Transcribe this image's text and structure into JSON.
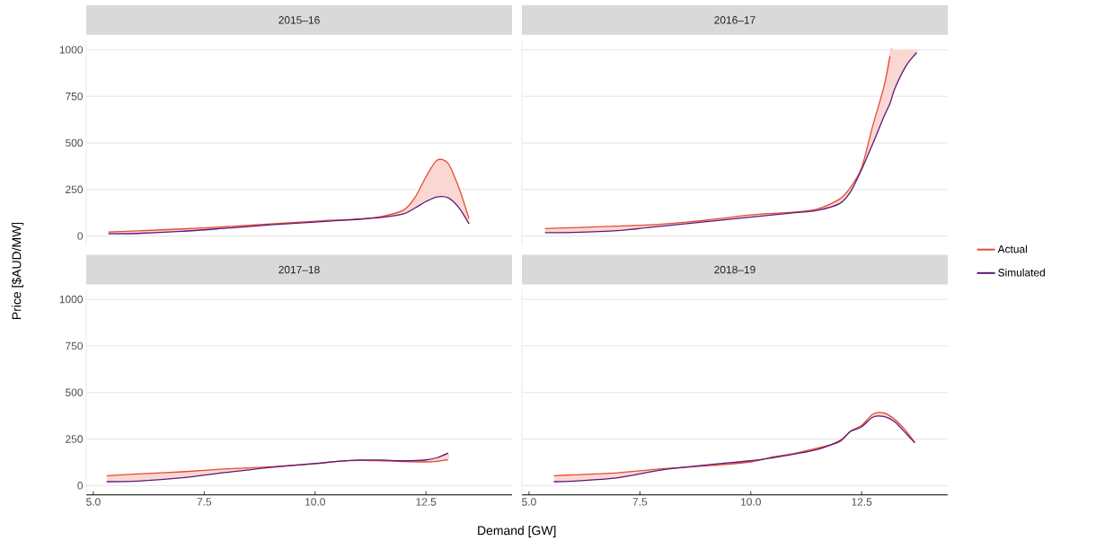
{
  "chart_data": [
    {
      "type": "line",
      "title": "2015–16",
      "ylabel": "Price [$AUD/MW]",
      "x": [
        5.34,
        6,
        7,
        8,
        9,
        10,
        11,
        11.5,
        12,
        12.25,
        12.5,
        12.75,
        13,
        13.25,
        13.47
      ],
      "xlim": [
        4.84,
        14.44
      ],
      "ylim": [
        -50,
        1050
      ],
      "yticks": [
        0,
        250,
        500,
        750,
        1000
      ],
      "grid": "y",
      "tick_labels": "y",
      "marker": "none",
      "line_style": "solid",
      "series": [
        {
          "color": "#e64b35",
          "values": [
            22,
            28,
            38,
            50,
            65,
            80,
            92,
            105,
            140,
            206,
            318,
            407,
            390,
            254,
            93
          ],
          "lower": [
            12,
            14,
            25,
            42,
            60,
            75,
            90,
            100,
            120,
            150,
            185,
            210,
            205,
            150,
            65
          ],
          "upper": [
            22,
            28,
            38,
            50,
            65,
            80,
            92,
            105,
            140,
            206,
            318,
            407,
            390,
            254,
            93
          ]
        },
        {
          "color": "#5b1a7b",
          "values": [
            12,
            14,
            25,
            42,
            60,
            75,
            90,
            100,
            120,
            150,
            185,
            210,
            205,
            150,
            65
          ]
        }
      ]
    },
    {
      "type": "line",
      "title": "2016–17",
      "x": [
        5.36,
        6,
        7,
        8,
        9,
        10,
        10.5,
        11,
        11.5,
        12,
        12.25,
        12.5,
        12.75,
        13,
        13.14,
        13.25,
        13.5,
        13.74
      ],
      "xlim": [
        4.84,
        14.44
      ],
      "ylim": [
        -50,
        1050
      ],
      "yticks": [
        0,
        250,
        500,
        750,
        1000
      ],
      "grid": "y",
      "tick_labels": false,
      "legend": "right",
      "marker": "none",
      "line_style": "solid",
      "series": [
        {
          "name": "Actual",
          "color": "#e64b35",
          "values": [
            40,
            45,
            53,
            64,
            85,
            113,
            122,
            129,
            145,
            198,
            262,
            367,
            592,
            800,
            965,
            null,
            null,
            null
          ],
          "lower": [
            18,
            19,
            29,
            53,
            77,
            101,
            113,
            125,
            138,
            174,
            238,
            358,
            495,
            640,
            712,
            793,
            913,
            985
          ],
          "upper": [
            40,
            45,
            53,
            64,
            85,
            113,
            122,
            129,
            145,
            198,
            262,
            367,
            592,
            800,
            1000,
            1000,
            1000,
            1000
          ]
        },
        {
          "name": "Simulated",
          "color": "#5b1a7b",
          "values": [
            18,
            19,
            29,
            53,
            77,
            101,
            113,
            125,
            138,
            174,
            238,
            358,
            495,
            640,
            712,
            793,
            913,
            985
          ]
        }
      ]
    },
    {
      "type": "line",
      "title": "2017–18",
      "xlabel": "Demand [GW]",
      "ylabel": null,
      "x": [
        5.3,
        6,
        7,
        8,
        9,
        10,
        10.5,
        11,
        11.5,
        12,
        12.5,
        12.75,
        13
      ],
      "xlim": [
        4.84,
        14.44
      ],
      "ylim": [
        -50,
        1050
      ],
      "xticks": [
        {
          "value": 5,
          "label": "5.0"
        },
        {
          "value": 7.5,
          "label": "7.5"
        },
        {
          "value": 10,
          "label": "10.0"
        },
        {
          "value": 12.5,
          "label": "12.5"
        }
      ],
      "yticks": [
        0,
        250,
        500,
        750,
        1000
      ],
      "grid": "y",
      "marker": "none",
      "line_style": "solid",
      "series": [
        {
          "color": "#e64b35",
          "values": [
            53,
            63,
            74,
            90,
            101,
            117,
            130,
            135,
            133,
            129,
            127,
            130,
            138
          ],
          "lower": [
            21,
            24,
            42,
            71,
            98,
            119,
            130,
            137,
            137,
            133,
            138,
            150,
            175
          ],
          "upper": [
            53,
            63,
            74,
            90,
            101,
            117,
            130,
            135,
            133,
            129,
            127,
            130,
            138
          ]
        },
        {
          "color": "#5b1a7b",
          "values": [
            21,
            24,
            42,
            71,
            98,
            119,
            130,
            137,
            137,
            133,
            138,
            150,
            175
          ]
        }
      ]
    },
    {
      "type": "line",
      "title": "2018–19",
      "x": [
        5.56,
        6,
        7,
        8,
        9,
        10,
        10.5,
        11,
        11.5,
        12,
        12.25,
        12.5,
        12.75,
        13,
        13.25,
        13.5,
        13.7
      ],
      "xlim": [
        4.84,
        14.44
      ],
      "ylim": [
        -50,
        1050
      ],
      "xticks": [
        {
          "value": 5,
          "label": "5.0"
        },
        {
          "value": 7.5,
          "label": "7.5"
        },
        {
          "value": 10,
          "label": "10.0"
        },
        {
          "value": 12.5,
          "label": "12.5"
        }
      ],
      "yticks": [
        0,
        250,
        500,
        750,
        1000
      ],
      "grid": "y",
      "tick_labels": "x",
      "marker": "none",
      "line_style": "solid",
      "series": [
        {
          "color": "#e64b35",
          "values": [
            53,
            58,
            69,
            90,
            106,
            127,
            154,
            174,
            201,
            235,
            292,
            323,
            383,
            390,
            355,
            294,
            230
          ],
          "lower": [
            21,
            24,
            42,
            84,
            111,
            133,
            150,
            170,
            194,
            240,
            291,
            315,
            367,
            371,
            342,
            280,
            230
          ],
          "upper": [
            53,
            58,
            69,
            90,
            106,
            127,
            154,
            174,
            201,
            235,
            292,
            323,
            383,
            390,
            355,
            294,
            230
          ]
        },
        {
          "color": "#5b1a7b",
          "values": [
            21,
            24,
            42,
            84,
            111,
            133,
            150,
            170,
            194,
            240,
            291,
            315,
            367,
            371,
            342,
            280,
            230
          ]
        }
      ]
    }
  ]
}
